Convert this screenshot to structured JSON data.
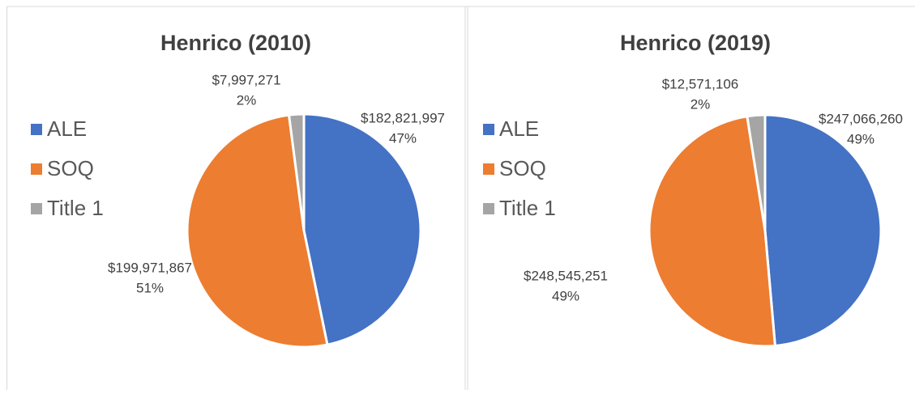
{
  "chart_data": [
    {
      "type": "pie",
      "title": "Henrico (2010)",
      "categories": [
        "ALE",
        "SOQ",
        "Title 1"
      ],
      "values": [
        182821997,
        199971867,
        7997271
      ],
      "value_labels": [
        "$182,821,997",
        "$199,971,867",
        "$7,997,271"
      ],
      "percent_labels": [
        "47%",
        "51%",
        "2%"
      ],
      "colors": [
        "#4472c4",
        "#ed7d31",
        "#a5a5a5"
      ],
      "legend": "left"
    },
    {
      "type": "pie",
      "title": "Henrico (2019)",
      "categories": [
        "ALE",
        "SOQ",
        "Title 1"
      ],
      "values": [
        247066260,
        248545251,
        12571106
      ],
      "value_labels": [
        "$247,066,260",
        "$248,545,251",
        "$12,571,106"
      ],
      "percent_labels": [
        "49%",
        "49%",
        "2%"
      ],
      "colors": [
        "#4472c4",
        "#ed7d31",
        "#a5a5a5"
      ],
      "legend": "left"
    }
  ]
}
